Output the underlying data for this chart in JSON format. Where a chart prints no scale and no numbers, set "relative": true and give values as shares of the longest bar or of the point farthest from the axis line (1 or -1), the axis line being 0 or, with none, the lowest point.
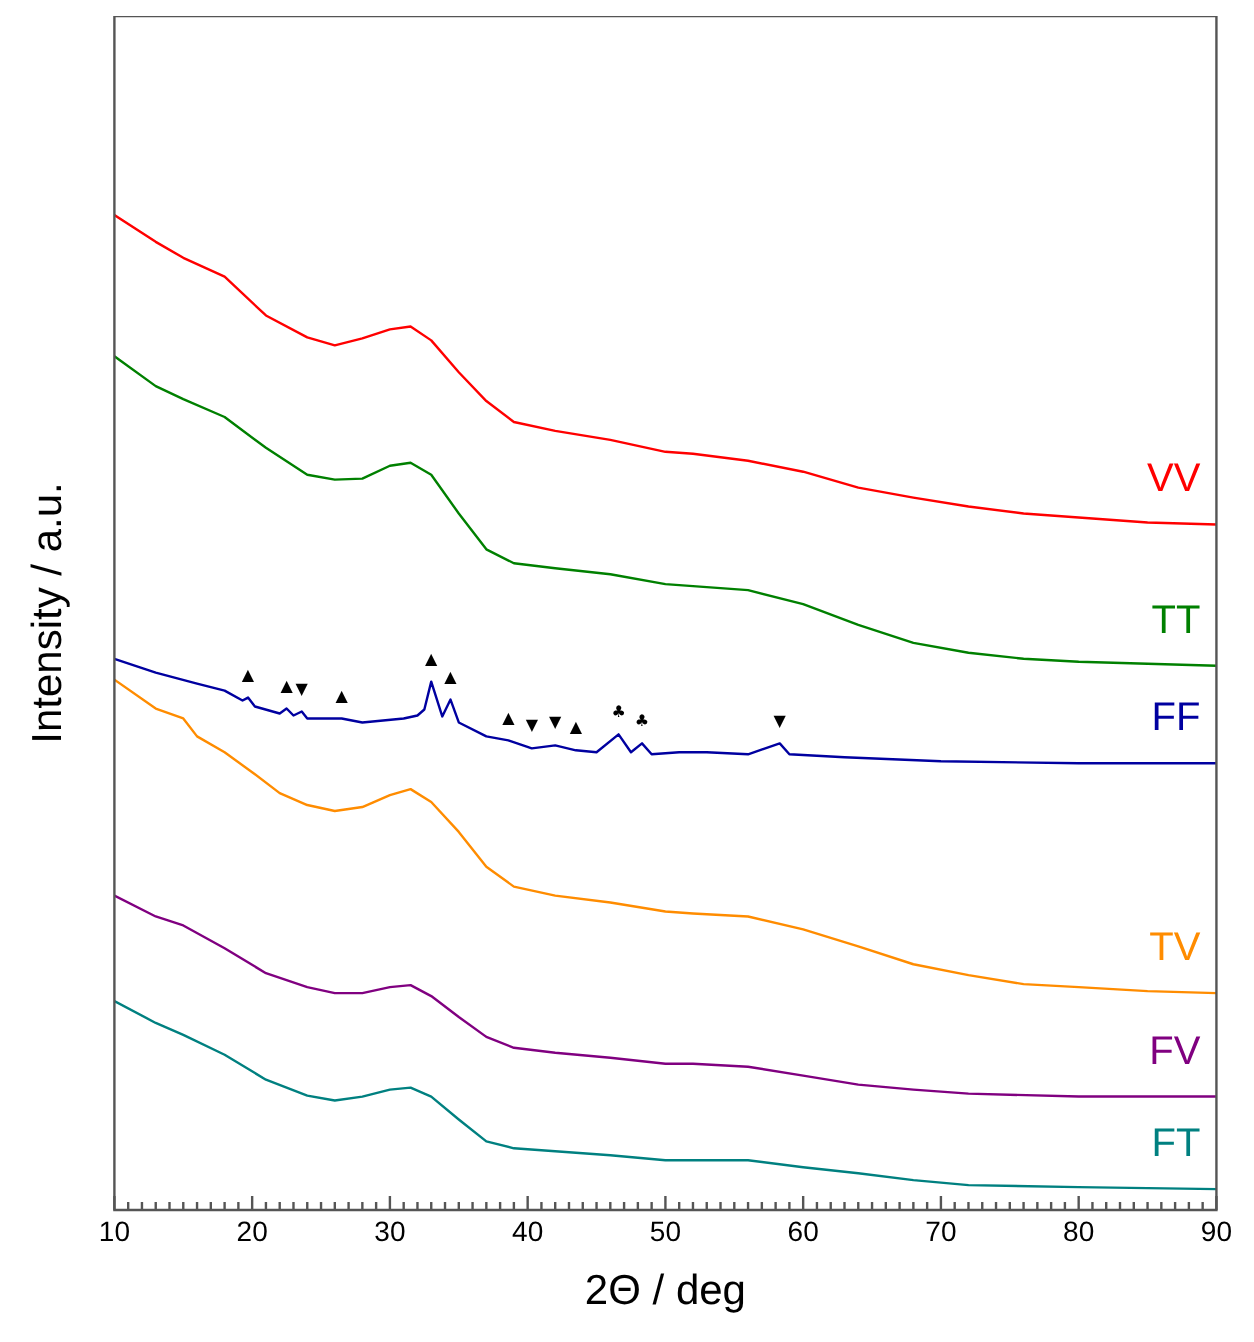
{
  "chart_data": {
    "type": "line",
    "xlabel": "2Θ / deg",
    "ylabel": "Intensity / a.u.",
    "relative": true,
    "xlim": [
      10,
      90
    ],
    "xticks": [
      10,
      {
        "value": 11,
        "label": null
      },
      {
        "value": 12,
        "label": null
      },
      {
        "value": 13,
        "label": null
      },
      {
        "value": 14,
        "label": null
      },
      {
        "value": 15,
        "label": null
      },
      {
        "value": 16,
        "label": null
      },
      {
        "value": 17,
        "label": null
      },
      {
        "value": 18,
        "label": null
      },
      {
        "value": 19,
        "label": null
      },
      20,
      {
        "value": 21,
        "label": null
      },
      {
        "value": 22,
        "label": null
      },
      {
        "value": 23,
        "label": null
      },
      {
        "value": 24,
        "label": null
      },
      {
        "value": 25,
        "label": null
      },
      {
        "value": 26,
        "label": null
      },
      {
        "value": 27,
        "label": null
      },
      {
        "value": 28,
        "label": null
      },
      {
        "value": 29,
        "label": null
      },
      30,
      {
        "value": 31,
        "label": null
      },
      {
        "value": 32,
        "label": null
      },
      {
        "value": 33,
        "label": null
      },
      {
        "value": 34,
        "label": null
      },
      {
        "value": 35,
        "label": null
      },
      {
        "value": 36,
        "label": null
      },
      {
        "value": 37,
        "label": null
      },
      {
        "value": 38,
        "label": null
      },
      {
        "value": 39,
        "label": null
      },
      40,
      {
        "value": 41,
        "label": null
      },
      {
        "value": 42,
        "label": null
      },
      {
        "value": 43,
        "label": null
      },
      {
        "value": 44,
        "label": null
      },
      {
        "value": 45,
        "label": null
      },
      {
        "value": 46,
        "label": null
      },
      {
        "value": 47,
        "label": null
      },
      {
        "value": 48,
        "label": null
      },
      {
        "value": 49,
        "label": null
      },
      50,
      {
        "value": 51,
        "label": null
      },
      {
        "value": 52,
        "label": null
      },
      {
        "value": 53,
        "label": null
      },
      {
        "value": 54,
        "label": null
      },
      {
        "value": 55,
        "label": null
      },
      {
        "value": 56,
        "label": null
      },
      {
        "value": 57,
        "label": null
      },
      {
        "value": 58,
        "label": null
      },
      {
        "value": 59,
        "label": null
      },
      60,
      {
        "value": 61,
        "label": null
      },
      {
        "value": 62,
        "label": null
      },
      {
        "value": 63,
        "label": null
      },
      {
        "value": 64,
        "label": null
      },
      {
        "value": 65,
        "label": null
      },
      {
        "value": 66,
        "label": null
      },
      {
        "value": 67,
        "label": null
      },
      {
        "value": 68,
        "label": null
      },
      {
        "value": 69,
        "label": null
      },
      70,
      {
        "value": 71,
        "label": null
      },
      {
        "value": 72,
        "label": null
      },
      {
        "value": 73,
        "label": null
      },
      {
        "value": 74,
        "label": null
      },
      {
        "value": 75,
        "label": null
      },
      {
        "value": 76,
        "label": null
      },
      {
        "value": 77,
        "label": null
      },
      {
        "value": 78,
        "label": null
      },
      {
        "value": 79,
        "label": null
      },
      80,
      {
        "value": 81,
        "label": null
      },
      {
        "value": 82,
        "label": null
      },
      {
        "value": 83,
        "label": null
      },
      {
        "value": 84,
        "label": null
      },
      {
        "value": 85,
        "label": null
      },
      {
        "value": 86,
        "label": null
      },
      {
        "value": 87,
        "label": null
      },
      {
        "value": 88,
        "label": null
      },
      {
        "value": 89,
        "label": null
      },
      90
    ],
    "grid": false,
    "legend": false,
    "marker": "none",
    "line_style": "solid",
    "series": [
      {
        "name": "VV",
        "color": "#ff0000",
        "x": [
          10,
          13,
          15,
          18,
          21,
          24,
          26,
          28,
          30,
          31.5,
          33,
          35,
          37,
          39,
          42,
          46,
          50,
          52,
          56,
          60,
          64,
          68,
          72,
          76,
          80,
          85,
          90
        ],
        "values": [
          1,
          0.973,
          0.957,
          0.938,
          0.899,
          0.877,
          0.869,
          0.876,
          0.885,
          0.888,
          0.874,
          0.842,
          0.813,
          0.792,
          0.783,
          0.774,
          0.762,
          0.76,
          0.753,
          0.742,
          0.726,
          0.716,
          0.707,
          0.7,
          0.696,
          0.691,
          0.689
        ]
      },
      {
        "name": "TT",
        "color": "#008000",
        "x": [
          10,
          13,
          15,
          18,
          21,
          24,
          26,
          28,
          30,
          31.5,
          33,
          35,
          37,
          39,
          42,
          46,
          50,
          52,
          56,
          60,
          64,
          68,
          72,
          76,
          80,
          85,
          90
        ],
        "values": [
          0.858,
          0.828,
          0.815,
          0.797,
          0.766,
          0.739,
          0.734,
          0.735,
          0.748,
          0.751,
          0.739,
          0.7,
          0.664,
          0.65,
          0.645,
          0.639,
          0.629,
          0.627,
          0.623,
          0.609,
          0.588,
          0.57,
          0.56,
          0.554,
          0.551,
          0.549,
          0.547
        ]
      },
      {
        "name": "FF",
        "color": "#0000a0",
        "x": [
          10,
          13,
          16,
          18,
          19.3,
          19.7,
          20.2,
          22,
          22.5,
          23,
          23.6,
          24,
          26.5,
          28,
          31,
          32,
          32.5,
          33,
          33.8,
          34.4,
          35,
          37,
          38.6,
          40.3,
          42,
          43.5,
          45,
          46.6,
          47.5,
          48.3,
          49,
          51,
          53,
          56,
          58.3,
          59,
          63,
          70,
          80,
          90
        ],
        "values": [
          0.554,
          0.54,
          0.529,
          0.522,
          0.512,
          0.515,
          0.506,
          0.499,
          0.504,
          0.497,
          0.501,
          0.494,
          0.494,
          0.49,
          0.494,
          0.497,
          0.503,
          0.531,
          0.496,
          0.513,
          0.49,
          0.476,
          0.472,
          0.464,
          0.467,
          0.462,
          0.46,
          0.478,
          0.46,
          0.469,
          0.458,
          0.46,
          0.46,
          0.458,
          0.469,
          0.458,
          0.455,
          0.451,
          0.449,
          0.449
        ]
      },
      {
        "name": "TV",
        "color": "#ff8c00",
        "x": [
          10,
          13,
          15,
          16,
          18,
          20,
          22,
          24,
          26,
          28,
          30,
          31.5,
          33,
          35,
          37,
          39,
          42,
          46,
          50,
          52,
          56,
          60,
          64,
          68,
          72,
          76,
          80,
          85,
          90
        ],
        "values": [
          0.533,
          0.504,
          0.494,
          0.476,
          0.46,
          0.44,
          0.419,
          0.407,
          0.401,
          0.405,
          0.417,
          0.423,
          0.41,
          0.38,
          0.345,
          0.325,
          0.316,
          0.309,
          0.3,
          0.298,
          0.295,
          0.282,
          0.265,
          0.247,
          0.236,
          0.227,
          0.224,
          0.22,
          0.218
        ]
      },
      {
        "name": "FV",
        "color": "#800080",
        "x": [
          10,
          13,
          15,
          18,
          21,
          24,
          26,
          28,
          30,
          31.5,
          33,
          35,
          37,
          39,
          42,
          46,
          50,
          52,
          56,
          60,
          64,
          68,
          72,
          80,
          90
        ],
        "values": [
          0.316,
          0.295,
          0.286,
          0.263,
          0.238,
          0.224,
          0.218,
          0.218,
          0.224,
          0.226,
          0.215,
          0.194,
          0.174,
          0.163,
          0.158,
          0.153,
          0.147,
          0.147,
          0.144,
          0.135,
          0.126,
          0.121,
          0.117,
          0.114,
          0.114
        ]
      },
      {
        "name": "FT",
        "color": "#008080",
        "x": [
          10,
          13,
          15,
          18,
          21,
          24,
          26,
          28,
          30,
          31.5,
          33,
          35,
          37,
          39,
          42,
          46,
          50,
          52,
          56,
          60,
          64,
          68,
          72,
          80,
          90
        ],
        "values": [
          0.21,
          0.188,
          0.176,
          0.156,
          0.131,
          0.115,
          0.11,
          0.114,
          0.121,
          0.123,
          0.114,
          0.091,
          0.069,
          0.062,
          0.059,
          0.055,
          0.05,
          0.05,
          0.05,
          0.043,
          0.037,
          0.03,
          0.025,
          0.023,
          0.021
        ]
      }
    ],
    "annotations": [
      {
        "text": "▲",
        "x": 19.7,
        "y": 0.515
      },
      {
        "text": "▲",
        "x": 22.5,
        "y": 0.504
      },
      {
        "text": "▼",
        "x": 23.6,
        "y": 0.501
      },
      {
        "text": "▲",
        "x": 26.5,
        "y": 0.494
      },
      {
        "text": "▲",
        "x": 33,
        "y": 0.531
      },
      {
        "text": "▲",
        "x": 34.4,
        "y": 0.513
      },
      {
        "text": "▲",
        "x": 38.6,
        "y": 0.472
      },
      {
        "text": "▼",
        "x": 40.3,
        "y": 0.464
      },
      {
        "text": "▼",
        "x": 42,
        "y": 0.467
      },
      {
        "text": "▲",
        "x": 43.5,
        "y": 0.462
      },
      {
        "text": "♣",
        "x": 46.6,
        "y": 0.478
      },
      {
        "text": "♣",
        "x": 48.3,
        "y": 0.469
      },
      {
        "text": "▼",
        "x": 58.3,
        "y": 0.469
      }
    ]
  }
}
